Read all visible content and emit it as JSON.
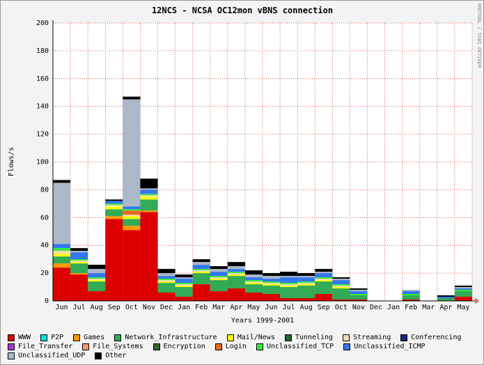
{
  "chart_data": {
    "type": "stacked_bar",
    "title": "12NCS - NCSA OC12mon vBNS connection",
    "y_label": "Flows/s",
    "x_label": "Years 1999-2001",
    "side_text": "RRDTOOL / TOBI OETIKER",
    "categories": [
      "Jun",
      "Jul",
      "Aug",
      "Sep",
      "Oct",
      "Nov",
      "Dec",
      "Jan",
      "Feb",
      "Mar",
      "Apr",
      "May",
      "Jun",
      "Jul",
      "Aug",
      "Sep",
      "Oct",
      "Nov",
      "Dec",
      "Jan",
      "Feb",
      "Mar",
      "Apr",
      "May"
    ],
    "ylim": [
      0,
      200
    ],
    "yticks": [
      0,
      20,
      40,
      60,
      80,
      100,
      120,
      140,
      160,
      180,
      200
    ],
    "grid": true,
    "series": [
      {
        "name": "WWW",
        "color": "#dd0000",
        "values": [
          24,
          19,
          7,
          59,
          51,
          64,
          6,
          3,
          12,
          7,
          9,
          6,
          5,
          2,
          2,
          5,
          1,
          1,
          0,
          0,
          1,
          0,
          0,
          3
        ]
      },
      {
        "name": "P2P",
        "color": "#00dddd",
        "values": [
          0,
          0,
          0,
          0,
          0,
          0,
          0,
          0,
          0,
          0,
          0,
          0,
          0,
          0,
          0,
          0,
          0,
          0,
          0,
          0,
          0,
          0,
          0,
          0
        ]
      },
      {
        "name": "Games",
        "color": "#ff9900",
        "values": [
          3,
          1,
          0,
          2,
          3,
          1,
          0,
          0,
          0,
          0,
          0,
          0,
          0,
          0,
          0,
          0,
          0,
          0,
          0,
          0,
          0,
          0,
          0,
          0
        ]
      },
      {
        "name": "Network_Infrastructure",
        "color": "#33aa55",
        "values": [
          5,
          7,
          7,
          5,
          5,
          8,
          7,
          7,
          8,
          8,
          9,
          6,
          6,
          8,
          9,
          9,
          8,
          3,
          0,
          0,
          3,
          0,
          2,
          4
        ]
      },
      {
        "name": "Mail/News",
        "color": "#ffff00",
        "values": [
          2,
          1,
          1,
          2,
          2,
          2,
          1,
          1,
          1,
          1,
          1,
          1,
          1,
          1,
          1,
          1,
          1,
          0,
          0,
          0,
          0,
          0,
          0,
          0
        ]
      },
      {
        "name": "Tunneling",
        "color": "#226633",
        "values": [
          0,
          0,
          0,
          0,
          0,
          0,
          0,
          0,
          0,
          0,
          0,
          0,
          0,
          0,
          0,
          0,
          0,
          0,
          0,
          0,
          0,
          0,
          0,
          0
        ]
      },
      {
        "name": "Streaming",
        "color": "#ffd9b3",
        "values": [
          2,
          1,
          1,
          1,
          1,
          1,
          1,
          1,
          1,
          1,
          1,
          1,
          1,
          1,
          1,
          1,
          1,
          0,
          0,
          0,
          0,
          0,
          0,
          0
        ]
      },
      {
        "name": "Conferencing",
        "color": "#1a237e",
        "values": [
          0,
          0,
          0,
          0,
          0,
          0,
          0,
          0,
          0,
          0,
          0,
          0,
          0,
          0,
          0,
          0,
          0,
          0,
          0,
          0,
          0,
          0,
          0,
          0
        ]
      },
      {
        "name": "File_Transfer",
        "color": "#aa33cc",
        "values": [
          0,
          0,
          0,
          0,
          0,
          0,
          0,
          0,
          0,
          0,
          0,
          0,
          0,
          0,
          0,
          0,
          0,
          0,
          0,
          0,
          0,
          0,
          0,
          0
        ]
      },
      {
        "name": "File_Systems",
        "color": "#ee9977",
        "values": [
          0,
          0,
          0,
          0,
          0,
          0,
          0,
          0,
          0,
          0,
          0,
          0,
          0,
          0,
          0,
          0,
          0,
          0,
          0,
          0,
          0,
          0,
          0,
          0
        ]
      },
      {
        "name": "Encryption",
        "color": "#336633",
        "values": [
          0,
          0,
          0,
          0,
          0,
          0,
          0,
          0,
          0,
          0,
          0,
          0,
          0,
          0,
          0,
          0,
          0,
          0,
          0,
          0,
          0,
          0,
          0,
          0
        ]
      },
      {
        "name": "Login",
        "color": "#ee6622",
        "values": [
          0,
          0,
          0,
          0,
          3,
          0,
          0,
          0,
          0,
          0,
          0,
          0,
          0,
          0,
          0,
          0,
          0,
          0,
          0,
          0,
          0,
          0,
          0,
          0
        ]
      },
      {
        "name": "Unclassified_TCP",
        "color": "#33ee33",
        "values": [
          2,
          1,
          1,
          1,
          1,
          1,
          1,
          1,
          1,
          1,
          1,
          1,
          1,
          1,
          1,
          1,
          1,
          1,
          0,
          0,
          1,
          0,
          0,
          1
        ]
      },
      {
        "name": "Unclassified_ICMP",
        "color": "#3377ee",
        "values": [
          3,
          5,
          3,
          2,
          2,
          3,
          2,
          3,
          3,
          3,
          2,
          2,
          2,
          4,
          3,
          3,
          3,
          2,
          0,
          0,
          2,
          0,
          1,
          1
        ]
      },
      {
        "name": "Unclassified_UDP",
        "color": "#aab8c8",
        "values": [
          44,
          1,
          3,
          0,
          77,
          1,
          2,
          1,
          2,
          2,
          2,
          2,
          2,
          1,
          1,
          1,
          1,
          1,
          0,
          0,
          1,
          0,
          0,
          1
        ]
      },
      {
        "name": "Other",
        "color": "#000000",
        "values": [
          2,
          2,
          3,
          1,
          2,
          7,
          3,
          2,
          2,
          2,
          3,
          3,
          2,
          3,
          2,
          2,
          1,
          1,
          0,
          0,
          0,
          0,
          1,
          1
        ]
      }
    ]
  }
}
